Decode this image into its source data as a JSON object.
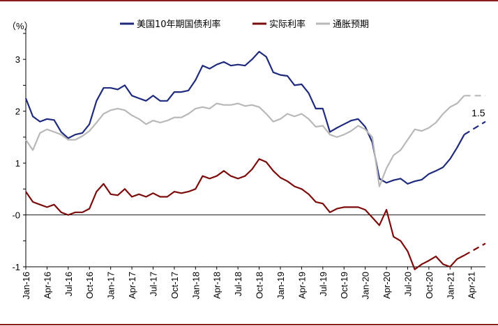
{
  "chart_data": {
    "type": "line",
    "y_unit_label": "（%）",
    "xlim": [
      "2016-01",
      "2021-06"
    ],
    "ylim": [
      -1,
      3.5
    ],
    "y_tick_values": [
      -1,
      -0.5,
      0,
      0.5,
      1,
      1.5,
      2,
      2.5,
      3,
      3.5
    ],
    "y_tick_labels": [
      "-1",
      "",
      "-0",
      "",
      "1",
      "",
      "2",
      "",
      "3",
      ""
    ],
    "x_tick_values": [
      "2016-01",
      "2016-04",
      "2016-07",
      "2016-10",
      "2017-01",
      "2017-04",
      "2017-07",
      "2017-10",
      "2018-01",
      "2018-04",
      "2018-07",
      "2018-10",
      "2019-01",
      "2019-04",
      "2019-07",
      "2019-10",
      "2020-01",
      "2020-04",
      "2020-07",
      "2020-10",
      "2021-01",
      "2021-04"
    ],
    "x_tick_labels": [
      "Jan-16",
      "Apr-16",
      "Jul-16",
      "Oct-16",
      "Jan-17",
      "Apr-17",
      "Jul-17",
      "Oct-17",
      "Jan-18",
      "Apr-18",
      "Jul-18",
      "Oct-18",
      "Jan-19",
      "Apr-19",
      "Jul-19",
      "Oct-19",
      "Jan-20",
      "Apr-20",
      "Jul-20",
      "Oct-20",
      "Jan-21",
      "Apr-21"
    ],
    "legend_position": "top",
    "series": [
      {
        "name": "美国10年期国债利率",
        "color": "#1f2a7c",
        "points": [
          [
            "2016-01",
            2.25
          ],
          [
            "2016-02",
            1.9
          ],
          [
            "2016-03",
            1.8
          ],
          [
            "2016-04",
            1.85
          ],
          [
            "2016-05",
            1.83
          ],
          [
            "2016-06",
            1.6
          ],
          [
            "2016-07",
            1.48
          ],
          [
            "2016-08",
            1.55
          ],
          [
            "2016-09",
            1.58
          ],
          [
            "2016-10",
            1.75
          ],
          [
            "2016-11",
            2.2
          ],
          [
            "2016-12",
            2.45
          ],
          [
            "2017-01",
            2.45
          ],
          [
            "2017-02",
            2.42
          ],
          [
            "2017-03",
            2.5
          ],
          [
            "2017-04",
            2.3
          ],
          [
            "2017-05",
            2.25
          ],
          [
            "2017-06",
            2.2
          ],
          [
            "2017-07",
            2.3
          ],
          [
            "2017-08",
            2.2
          ],
          [
            "2017-09",
            2.2
          ],
          [
            "2017-10",
            2.37
          ],
          [
            "2017-11",
            2.37
          ],
          [
            "2017-12",
            2.4
          ],
          [
            "2018-01",
            2.6
          ],
          [
            "2018-02",
            2.88
          ],
          [
            "2018-03",
            2.82
          ],
          [
            "2018-04",
            2.9
          ],
          [
            "2018-05",
            2.95
          ],
          [
            "2018-06",
            2.88
          ],
          [
            "2018-07",
            2.9
          ],
          [
            "2018-08",
            2.88
          ],
          [
            "2018-09",
            3.0
          ],
          [
            "2018-10",
            3.15
          ],
          [
            "2018-11",
            3.05
          ],
          [
            "2018-12",
            2.75
          ],
          [
            "2019-01",
            2.7
          ],
          [
            "2019-02",
            2.68
          ],
          [
            "2019-03",
            2.5
          ],
          [
            "2019-04",
            2.52
          ],
          [
            "2019-05",
            2.35
          ],
          [
            "2019-06",
            2.05
          ],
          [
            "2019-07",
            2.05
          ],
          [
            "2019-08",
            1.6
          ],
          [
            "2019-09",
            1.68
          ],
          [
            "2019-10",
            1.75
          ],
          [
            "2019-11",
            1.82
          ],
          [
            "2019-12",
            1.85
          ],
          [
            "2020-01",
            1.7
          ],
          [
            "2020-02",
            1.4
          ],
          [
            "2020-03",
            0.7
          ],
          [
            "2020-04",
            0.62
          ],
          [
            "2020-05",
            0.67
          ],
          [
            "2020-06",
            0.7
          ],
          [
            "2020-07",
            0.6
          ],
          [
            "2020-08",
            0.65
          ],
          [
            "2020-09",
            0.68
          ],
          [
            "2020-10",
            0.79
          ],
          [
            "2020-11",
            0.85
          ],
          [
            "2020-12",
            0.92
          ],
          [
            "2021-01",
            1.08
          ],
          [
            "2021-02",
            1.3
          ],
          [
            "2021-03",
            1.55
          ]
        ],
        "forecast": [
          [
            "2021-03",
            1.55
          ],
          [
            "2021-06",
            1.8
          ]
        ]
      },
      {
        "name": "实际利率",
        "color": "#7b0c0c",
        "points": [
          [
            "2016-01",
            0.45
          ],
          [
            "2016-02",
            0.25
          ],
          [
            "2016-03",
            0.2
          ],
          [
            "2016-04",
            0.15
          ],
          [
            "2016-05",
            0.2
          ],
          [
            "2016-06",
            0.05
          ],
          [
            "2016-07",
            0.0
          ],
          [
            "2016-08",
            0.05
          ],
          [
            "2016-09",
            0.05
          ],
          [
            "2016-10",
            0.12
          ],
          [
            "2016-11",
            0.45
          ],
          [
            "2016-12",
            0.6
          ],
          [
            "2017-01",
            0.4
          ],
          [
            "2017-02",
            0.38
          ],
          [
            "2017-03",
            0.5
          ],
          [
            "2017-04",
            0.35
          ],
          [
            "2017-05",
            0.4
          ],
          [
            "2017-06",
            0.35
          ],
          [
            "2017-07",
            0.42
          ],
          [
            "2017-08",
            0.35
          ],
          [
            "2017-09",
            0.35
          ],
          [
            "2017-10",
            0.45
          ],
          [
            "2017-11",
            0.42
          ],
          [
            "2017-12",
            0.45
          ],
          [
            "2018-01",
            0.5
          ],
          [
            "2018-02",
            0.75
          ],
          [
            "2018-03",
            0.7
          ],
          [
            "2018-04",
            0.75
          ],
          [
            "2018-05",
            0.85
          ],
          [
            "2018-06",
            0.75
          ],
          [
            "2018-07",
            0.7
          ],
          [
            "2018-08",
            0.75
          ],
          [
            "2018-09",
            0.88
          ],
          [
            "2018-10",
            1.08
          ],
          [
            "2018-11",
            1.02
          ],
          [
            "2018-12",
            0.85
          ],
          [
            "2019-01",
            0.72
          ],
          [
            "2019-02",
            0.65
          ],
          [
            "2019-03",
            0.55
          ],
          [
            "2019-04",
            0.5
          ],
          [
            "2019-05",
            0.4
          ],
          [
            "2019-06",
            0.25
          ],
          [
            "2019-07",
            0.22
          ],
          [
            "2019-08",
            0.05
          ],
          [
            "2019-09",
            0.12
          ],
          [
            "2019-10",
            0.15
          ],
          [
            "2019-11",
            0.15
          ],
          [
            "2019-12",
            0.15
          ],
          [
            "2020-01",
            0.1
          ],
          [
            "2020-02",
            -0.05
          ],
          [
            "2020-03",
            -0.2
          ],
          [
            "2020-04",
            0.1
          ],
          [
            "2020-05",
            -0.42
          ],
          [
            "2020-06",
            -0.5
          ],
          [
            "2020-07",
            -0.7
          ],
          [
            "2020-08",
            -1.05
          ],
          [
            "2020-09",
            -0.95
          ],
          [
            "2020-10",
            -0.88
          ],
          [
            "2020-11",
            -0.8
          ],
          [
            "2020-12",
            -0.95
          ],
          [
            "2021-01",
            -1.0
          ],
          [
            "2021-02",
            -0.85
          ],
          [
            "2021-03",
            -0.78
          ]
        ],
        "forecast": [
          [
            "2021-03",
            -0.78
          ],
          [
            "2021-06",
            -0.55
          ]
        ]
      },
      {
        "name": "通胀预期",
        "color": "#b8b8b8",
        "points": [
          [
            "2016-01",
            1.45
          ],
          [
            "2016-02",
            1.25
          ],
          [
            "2016-03",
            1.58
          ],
          [
            "2016-04",
            1.65
          ],
          [
            "2016-05",
            1.6
          ],
          [
            "2016-06",
            1.55
          ],
          [
            "2016-07",
            1.45
          ],
          [
            "2016-08",
            1.45
          ],
          [
            "2016-09",
            1.52
          ],
          [
            "2016-10",
            1.62
          ],
          [
            "2016-11",
            1.78
          ],
          [
            "2016-12",
            1.95
          ],
          [
            "2017-01",
            2.02
          ],
          [
            "2017-02",
            2.05
          ],
          [
            "2017-03",
            2.02
          ],
          [
            "2017-04",
            1.92
          ],
          [
            "2017-05",
            1.85
          ],
          [
            "2017-06",
            1.75
          ],
          [
            "2017-07",
            1.82
          ],
          [
            "2017-08",
            1.78
          ],
          [
            "2017-09",
            1.82
          ],
          [
            "2017-10",
            1.88
          ],
          [
            "2017-11",
            1.88
          ],
          [
            "2017-12",
            1.95
          ],
          [
            "2018-01",
            2.05
          ],
          [
            "2018-02",
            2.08
          ],
          [
            "2018-03",
            2.05
          ],
          [
            "2018-04",
            2.15
          ],
          [
            "2018-05",
            2.12
          ],
          [
            "2018-06",
            2.12
          ],
          [
            "2018-07",
            2.15
          ],
          [
            "2018-08",
            2.1
          ],
          [
            "2018-09",
            2.12
          ],
          [
            "2018-10",
            2.08
          ],
          [
            "2018-11",
            1.95
          ],
          [
            "2018-12",
            1.8
          ],
          [
            "2019-01",
            1.85
          ],
          [
            "2019-02",
            1.95
          ],
          [
            "2019-03",
            1.9
          ],
          [
            "2019-04",
            1.95
          ],
          [
            "2019-05",
            1.85
          ],
          [
            "2019-06",
            1.7
          ],
          [
            "2019-07",
            1.72
          ],
          [
            "2019-08",
            1.55
          ],
          [
            "2019-09",
            1.5
          ],
          [
            "2019-10",
            1.55
          ],
          [
            "2019-11",
            1.62
          ],
          [
            "2019-12",
            1.72
          ],
          [
            "2020-01",
            1.65
          ],
          [
            "2020-02",
            1.5
          ],
          [
            "2020-03",
            0.55
          ],
          [
            "2020-04",
            0.9
          ],
          [
            "2020-05",
            1.15
          ],
          [
            "2020-06",
            1.25
          ],
          [
            "2020-07",
            1.45
          ],
          [
            "2020-08",
            1.65
          ],
          [
            "2020-09",
            1.62
          ],
          [
            "2020-10",
            1.68
          ],
          [
            "2020-11",
            1.78
          ],
          [
            "2020-12",
            1.95
          ],
          [
            "2021-01",
            2.08
          ],
          [
            "2021-02",
            2.15
          ],
          [
            "2021-03",
            2.3
          ]
        ],
        "forecast": [
          [
            "2021-03",
            2.3
          ],
          [
            "2021-06",
            2.3
          ]
        ]
      }
    ],
    "annotations": [
      {
        "text": "1.5",
        "x": "2021-05",
        "y": 1.9
      }
    ]
  }
}
